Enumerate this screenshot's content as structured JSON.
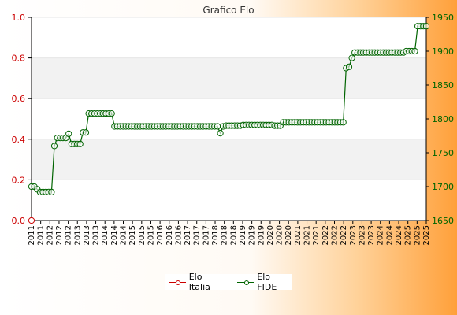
{
  "chart_data": {
    "type": "line",
    "title": "Grafico Elo",
    "left_axis": {
      "ylim": [
        0.0,
        1.0
      ],
      "ticks": [
        "0.0",
        "0.2",
        "0.4",
        "0.6",
        "0.8",
        "1.0"
      ]
    },
    "right_axis": {
      "ylim": [
        1650,
        1950
      ],
      "ticks": [
        "1650",
        "1700",
        "1750",
        "1800",
        "1850",
        "1900",
        "1950"
      ]
    },
    "x_ticks_partial": [
      "2011",
      "2011",
      "2012",
      "2012",
      "2012",
      "2013",
      "2013",
      "2013",
      "2014",
      "2014",
      "2014",
      "2015",
      "2015",
      "2015",
      "2016",
      "2016",
      "2016",
      "2017",
      "2017",
      "2017",
      "2018",
      "2018",
      "2018",
      "2019",
      "2019",
      "2019",
      "2020",
      "2020",
      "2020",
      "2021",
      "2021",
      "2021",
      "2022",
      "2022",
      "2022",
      "2023",
      "2023",
      "2023",
      "2024",
      "2024",
      "2024",
      "2025",
      "2025",
      "2025"
    ],
    "series": [
      {
        "name": "Elo Italia",
        "axis": "left",
        "color": "#cc0000",
        "values": [
          0.0
        ]
      },
      {
        "name": "Elo FIDE",
        "axis": "right",
        "color": "#006400",
        "values": [
          1700,
          1700,
          1696,
          1692,
          1692,
          1692,
          1692,
          1692,
          1760,
          1772,
          1772,
          1772,
          1772,
          1778,
          1763,
          1763,
          1763,
          1763,
          1780,
          1780,
          1808,
          1808,
          1808,
          1808,
          1808,
          1808,
          1808,
          1808,
          1808,
          1789,
          1789,
          1789,
          1789,
          1789,
          1789,
          1789,
          1789,
          1789,
          1789,
          1789,
          1789,
          1789,
          1789,
          1789,
          1789,
          1789,
          1789,
          1789,
          1789,
          1789,
          1789,
          1789,
          1789,
          1789,
          1789,
          1789,
          1789,
          1789,
          1789,
          1789,
          1789,
          1789,
          1789,
          1789,
          1789,
          1789,
          1779,
          1789,
          1790,
          1790,
          1790,
          1790,
          1790,
          1790,
          1791,
          1791,
          1791,
          1791,
          1791,
          1791,
          1791,
          1791,
          1791,
          1791,
          1791,
          1790,
          1790,
          1790,
          1795,
          1795,
          1795,
          1795,
          1795,
          1795,
          1795,
          1795,
          1795,
          1795,
          1795,
          1795,
          1795,
          1795,
          1795,
          1795,
          1795,
          1795,
          1795,
          1795,
          1795,
          1795,
          1875,
          1877,
          1890,
          1898,
          1898,
          1898,
          1898,
          1898,
          1898,
          1898,
          1898,
          1898,
          1898,
          1898,
          1898,
          1898,
          1898,
          1898,
          1898,
          1898,
          1898,
          1900,
          1900,
          1900,
          1900,
          1937,
          1937,
          1937,
          1937
        ]
      }
    ]
  },
  "legend": {
    "items": [
      "Elo Italia",
      "Elo FIDE"
    ]
  }
}
